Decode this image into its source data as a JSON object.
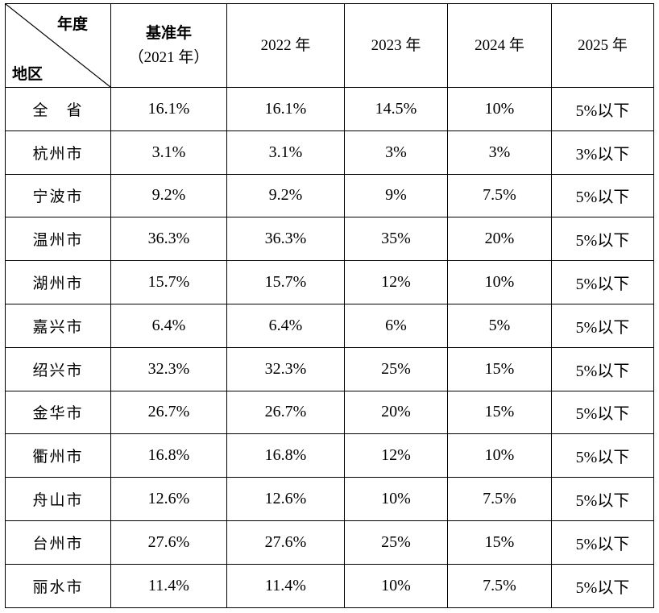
{
  "table": {
    "corner": {
      "top_label": "年度",
      "bottom_label": "地区"
    },
    "columns": [
      {
        "line1": "基准年",
        "line2": "（2021 年）"
      },
      {
        "line1": "2022 年"
      },
      {
        "line1": "2023 年"
      },
      {
        "line1": "2024 年"
      },
      {
        "line1": "2025 年"
      }
    ],
    "rows": [
      {
        "region": "全　省",
        "values": [
          "16.1%",
          "16.1%",
          "14.5%",
          "10%",
          "5%以下"
        ]
      },
      {
        "region": "杭州市",
        "values": [
          "3.1%",
          "3.1%",
          "3%",
          "3%",
          "3%以下"
        ]
      },
      {
        "region": "宁波市",
        "values": [
          "9.2%",
          "9.2%",
          "9%",
          "7.5%",
          "5%以下"
        ]
      },
      {
        "region": "温州市",
        "values": [
          "36.3%",
          "36.3%",
          "35%",
          "20%",
          "5%以下"
        ]
      },
      {
        "region": "湖州市",
        "values": [
          "15.7%",
          "15.7%",
          "12%",
          "10%",
          "5%以下"
        ]
      },
      {
        "region": "嘉兴市",
        "values": [
          "6.4%",
          "6.4%",
          "6%",
          "5%",
          "5%以下"
        ]
      },
      {
        "region": "绍兴市",
        "values": [
          "32.3%",
          "32.3%",
          "25%",
          "15%",
          "5%以下"
        ]
      },
      {
        "region": "金华市",
        "values": [
          "26.7%",
          "26.7%",
          "20%",
          "15%",
          "5%以下"
        ]
      },
      {
        "region": "衢州市",
        "values": [
          "16.8%",
          "16.8%",
          "12%",
          "10%",
          "5%以下"
        ]
      },
      {
        "region": "舟山市",
        "values": [
          "12.6%",
          "12.6%",
          "10%",
          "7.5%",
          "5%以下"
        ]
      },
      {
        "region": "台州市",
        "values": [
          "27.6%",
          "27.6%",
          "25%",
          "15%",
          "5%以下"
        ]
      },
      {
        "region": "丽水市",
        "values": [
          "11.4%",
          "11.4%",
          "10%",
          "7.5%",
          "5%以下"
        ]
      }
    ]
  }
}
